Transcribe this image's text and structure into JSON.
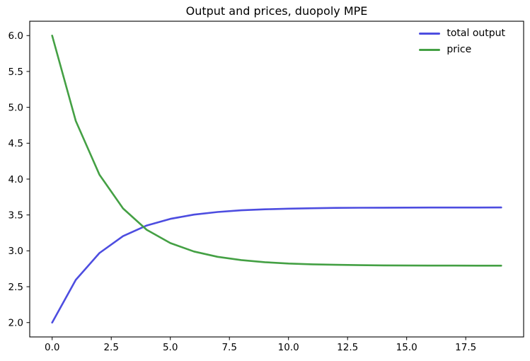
{
  "figure": {
    "background_color": "#ffffff",
    "axes_edge_color": "#000000"
  },
  "chart_data": {
    "type": "line",
    "title": "Output and prices, duopoly MPE",
    "xlabel": "",
    "ylabel": "",
    "grid": false,
    "legend_position": "upper right",
    "legend_frame": false,
    "xlim": [
      -0.95,
      19.95
    ],
    "ylim": [
      1.8,
      6.2
    ],
    "xticks": [
      0.0,
      2.5,
      5.0,
      7.5,
      10.0,
      12.5,
      15.0,
      17.5
    ],
    "yticks": [
      2.0,
      2.5,
      3.0,
      3.5,
      4.0,
      4.5,
      5.0,
      5.5,
      6.0
    ],
    "x": [
      0,
      1,
      2,
      3,
      4,
      5,
      6,
      7,
      8,
      9,
      10,
      11,
      12,
      13,
      14,
      15,
      16,
      17,
      18,
      19
    ],
    "series": [
      {
        "name": "total output",
        "color": "#4d4de0",
        "values": [
          2.0,
          2.595,
          2.969,
          3.205,
          3.353,
          3.446,
          3.505,
          3.541,
          3.565,
          3.579,
          3.588,
          3.594,
          3.598,
          3.6,
          3.601,
          3.602,
          3.603,
          3.603,
          3.603,
          3.604
        ]
      },
      {
        "name": "price",
        "color": "#44a044",
        "values": [
          6.0,
          4.81,
          4.062,
          3.591,
          3.294,
          3.108,
          2.991,
          2.917,
          2.871,
          2.842,
          2.823,
          2.812,
          2.805,
          2.8,
          2.797,
          2.795,
          2.794,
          2.794,
          2.793,
          2.793
        ]
      }
    ]
  }
}
